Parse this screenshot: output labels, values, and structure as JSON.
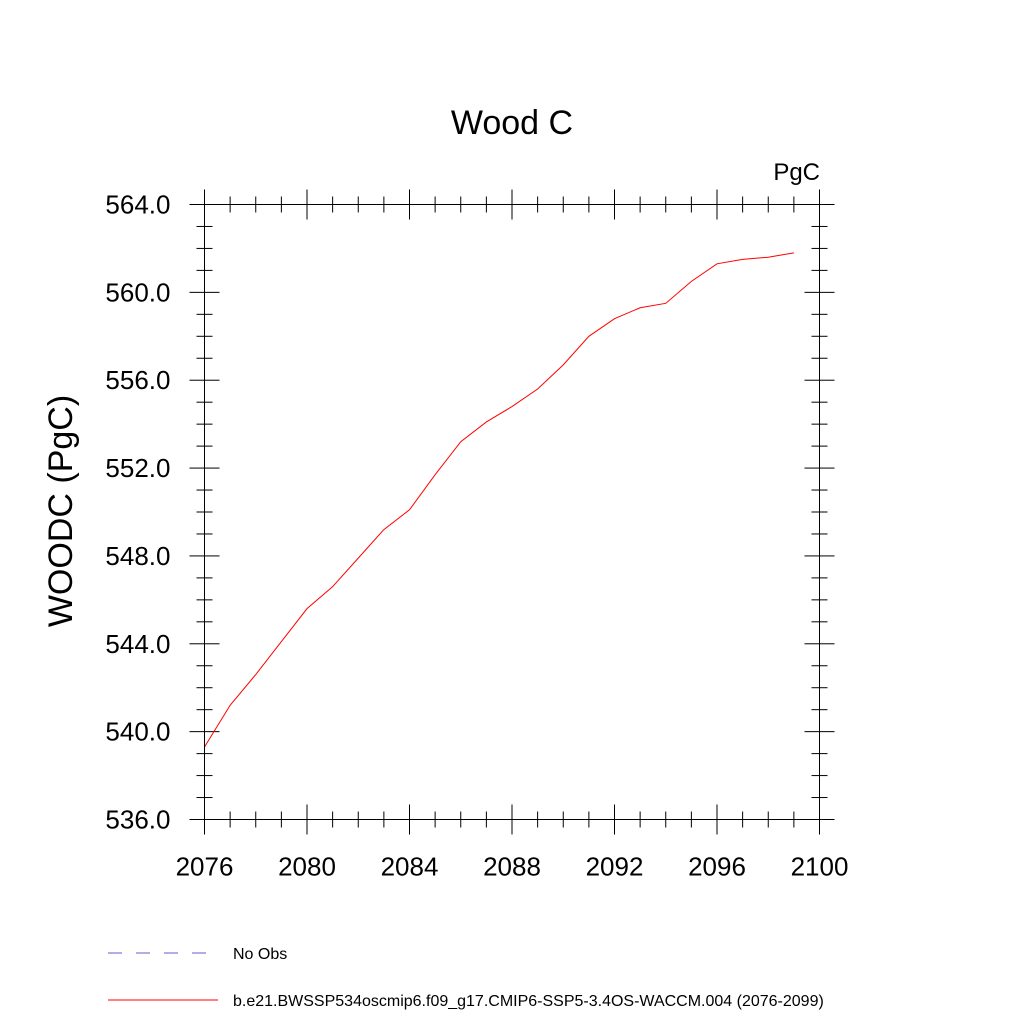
{
  "chart_data": {
    "type": "line",
    "title": "Wood C",
    "units_label": "PgC",
    "ylabel": "WOODC  (PgC)",
    "xlabel": "",
    "xlim": [
      2076,
      2100
    ],
    "ylim": [
      536,
      564
    ],
    "xticks": [
      2076,
      2080,
      2084,
      2088,
      2092,
      2096,
      2100
    ],
    "xtick_labels": [
      "2076",
      "2080",
      "2084",
      "2088",
      "2092",
      "2096",
      "2100"
    ],
    "yticks": [
      536,
      540,
      544,
      548,
      552,
      556,
      560,
      564
    ],
    "ytick_labels": [
      "536.0",
      "540.0",
      "544.0",
      "548.0",
      "552.0",
      "556.0",
      "560.0",
      "564.0"
    ],
    "grid": false,
    "legend_position": "bottom",
    "series": [
      {
        "name": "b.e21.BWSSP534oscmip6.f09_g17.CMIP6-SSP5-3.4OS-WACCM.004 (2076-2099)",
        "color": "#ff0000",
        "style": "solid",
        "x": [
          2076,
          2077,
          2078,
          2079,
          2080,
          2081,
          2082,
          2083,
          2084,
          2085,
          2086,
          2087,
          2088,
          2089,
          2090,
          2091,
          2092,
          2093,
          2094,
          2095,
          2096,
          2097,
          2098,
          2099
        ],
        "y": [
          539.3,
          541.2,
          542.6,
          544.1,
          545.6,
          546.6,
          547.9,
          549.2,
          550.1,
          551.7,
          553.2,
          554.1,
          554.8,
          555.6,
          556.7,
          558.0,
          558.8,
          559.3,
          559.5,
          560.5,
          561.3,
          561.5,
          561.6,
          561.8
        ]
      }
    ],
    "legend": [
      {
        "label": "No Obs",
        "color": "#6a5acd",
        "style": "dashed"
      },
      {
        "label": "b.e21.BWSSP534oscmip6.f09_g17.CMIP6-SSP5-3.4OS-WACCM.004 (2076-2099)",
        "color": "#ff0000",
        "style": "solid"
      }
    ]
  }
}
